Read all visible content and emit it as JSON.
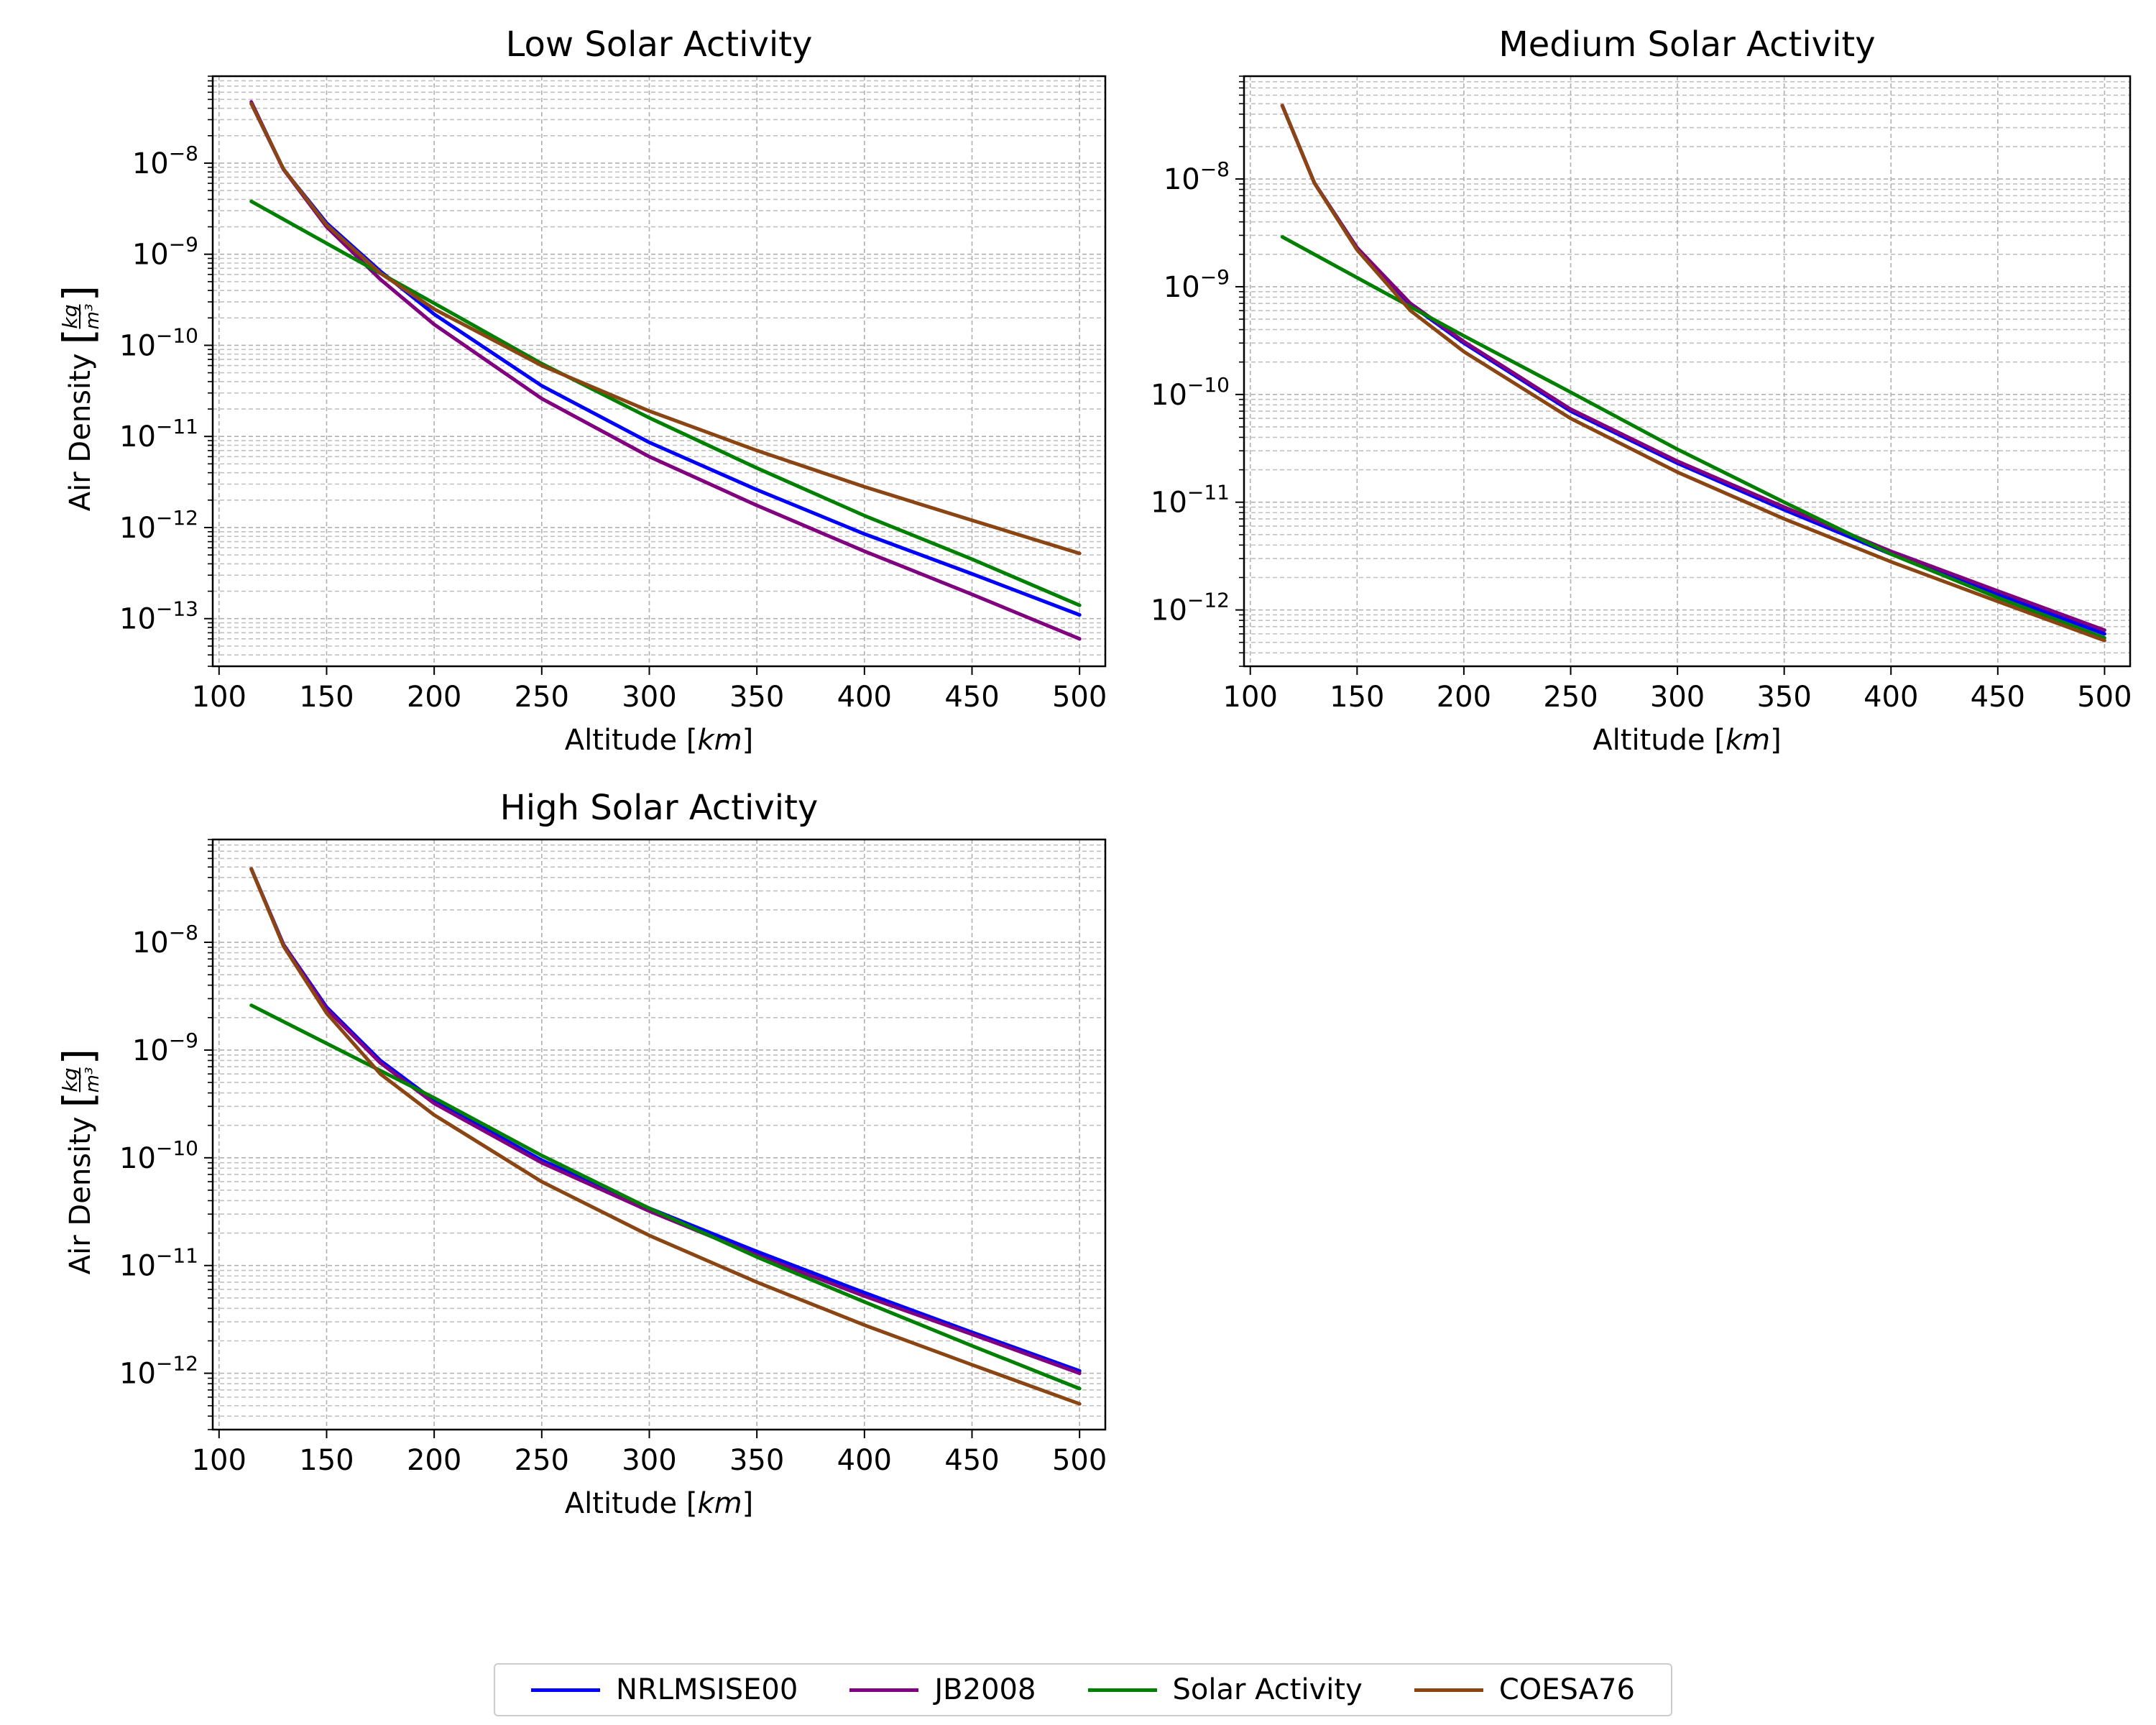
{
  "chart_data": [
    {
      "type": "line",
      "title": "Low Solar Activity",
      "xlabel": "Altitude [km]",
      "ylabel": "Air Density [kg/m³]",
      "x_range": [
        100,
        500
      ],
      "x_ticks": [
        100,
        150,
        200,
        250,
        300,
        350,
        400,
        450,
        500
      ],
      "y_scale": "log",
      "y_range": [
        3e-14,
        9e-08
      ],
      "y_ticks": [
        -13,
        -12,
        -11,
        -10,
        -9,
        -8
      ],
      "grid": "major and minor, dashed",
      "series": [
        {
          "name": "NRLMSISE00",
          "x": [
            115,
            130,
            150,
            175,
            200,
            250,
            300,
            350,
            400,
            450,
            500
          ],
          "y": [
            4.5e-08,
            8.5e-09,
            2.2e-09,
            6.5e-10,
            2.2e-10,
            3.6e-11,
            8.6e-12,
            2.6e-12,
            8.5e-13,
            3.1e-13,
            1.1e-13
          ]
        },
        {
          "name": "JB2008",
          "x": [
            115,
            130,
            150,
            175,
            200,
            250,
            300,
            350,
            400,
            450,
            500
          ],
          "y": [
            4.7e-08,
            8.5e-09,
            2e-09,
            5.3e-10,
            1.7e-10,
            2.6e-11,
            6e-12,
            1.75e-12,
            5.5e-13,
            1.85e-13,
            6e-14
          ]
        },
        {
          "name": "Solar Activity",
          "x": [
            115,
            200,
            250,
            300,
            350,
            400,
            450,
            500
          ],
          "y": [
            3.8e-09,
            2.9e-10,
            6.3e-11,
            1.6e-11,
            4.5e-12,
            1.35e-12,
            4.5e-13,
            1.4e-13
          ]
        },
        {
          "name": "COESA76",
          "x": [
            115,
            130,
            150,
            175,
            200,
            250,
            300,
            350,
            400,
            450,
            500
          ],
          "y": [
            4.5e-08,
            8.6e-09,
            2.1e-09,
            6.2e-10,
            2.5e-10,
            6e-11,
            1.9e-11,
            7e-12,
            2.8e-12,
            1.2e-12,
            5.2e-13
          ]
        }
      ]
    },
    {
      "type": "line",
      "title": "Medium Solar Activity",
      "xlabel": "Altitude [km]",
      "ylabel": "",
      "x_range": [
        100,
        500
      ],
      "x_ticks": [
        100,
        150,
        200,
        250,
        300,
        350,
        400,
        450,
        500
      ],
      "y_scale": "log",
      "y_range": [
        3e-13,
        9e-08
      ],
      "y_ticks": [
        -12,
        -11,
        -10,
        -9,
        -8
      ],
      "grid": "major and minor, dashed",
      "series": [
        {
          "name": "NRLMSISE00",
          "x": [
            115,
            130,
            150,
            175,
            200,
            250,
            300,
            350,
            400,
            450,
            500
          ],
          "y": [
            4.8e-08,
            9.2e-09,
            2.3e-09,
            6.8e-10,
            3e-10,
            7e-11,
            2.3e-11,
            8.5e-12,
            3.3e-12,
            1.4e-12,
            6e-13
          ]
        },
        {
          "name": "JB2008",
          "x": [
            115,
            130,
            150,
            175,
            200,
            250,
            300,
            350,
            400,
            450,
            500
          ],
          "y": [
            4.8e-08,
            9.2e-09,
            2.3e-09,
            7e-10,
            3.1e-10,
            7.3e-11,
            2.4e-11,
            9e-12,
            3.5e-12,
            1.5e-12,
            6.5e-13
          ]
        },
        {
          "name": "Solar Activity",
          "x": [
            115,
            200,
            250,
            300,
            350,
            400,
            450,
            500
          ],
          "y": [
            2.9e-09,
            3.5e-10,
            1.05e-10,
            3.1e-11,
            1e-11,
            3.3e-12,
            1.3e-12,
            5.5e-13
          ]
        },
        {
          "name": "COESA76",
          "x": [
            115,
            130,
            150,
            175,
            200,
            250,
            300,
            350,
            400,
            450,
            500
          ],
          "y": [
            4.8e-08,
            9.2e-09,
            2.2e-09,
            6e-10,
            2.5e-10,
            6e-11,
            1.9e-11,
            7e-12,
            2.8e-12,
            1.2e-12,
            5.2e-13
          ]
        }
      ]
    },
    {
      "type": "line",
      "title": "High Solar Activity",
      "xlabel": "Altitude [km]",
      "ylabel": "Air Density [kg/m³]",
      "x_range": [
        100,
        500
      ],
      "x_ticks": [
        100,
        150,
        200,
        250,
        300,
        350,
        400,
        450,
        500
      ],
      "y_scale": "log",
      "y_range": [
        3e-13,
        9e-08
      ],
      "y_ticks": [
        -12,
        -11,
        -10,
        -9,
        -8
      ],
      "grid": "major and minor, dashed",
      "series": [
        {
          "name": "NRLMSISE00",
          "x": [
            115,
            130,
            150,
            175,
            200,
            250,
            300,
            350,
            400,
            450,
            500
          ],
          "y": [
            4.8e-08,
            9.5e-09,
            2.5e-09,
            8e-10,
            3.4e-10,
            9.5e-11,
            3.4e-11,
            1.35e-11,
            5.6e-12,
            2.4e-12,
            1.05e-12
          ]
        },
        {
          "name": "JB2008",
          "x": [
            115,
            130,
            150,
            175,
            200,
            250,
            300,
            350,
            400,
            450,
            500
          ],
          "y": [
            4.8e-08,
            9.4e-09,
            2.4e-09,
            7.6e-10,
            3.2e-10,
            9e-11,
            3.2e-11,
            1.25e-11,
            5.2e-12,
            2.3e-12,
            1e-12
          ]
        },
        {
          "name": "Solar Activity",
          "x": [
            115,
            200,
            250,
            300,
            350,
            400,
            450,
            500
          ],
          "y": [
            2.6e-09,
            3.6e-10,
            1.05e-10,
            3.4e-11,
            1.2e-11,
            4.6e-12,
            1.8e-12,
            7.2e-13
          ]
        },
        {
          "name": "COESA76",
          "x": [
            115,
            130,
            150,
            175,
            200,
            250,
            300,
            350,
            400,
            450,
            500
          ],
          "y": [
            4.8e-08,
            9.2e-09,
            2.2e-09,
            6e-10,
            2.5e-10,
            6e-11,
            1.9e-11,
            7e-12,
            2.8e-12,
            1.2e-12,
            5.2e-13
          ]
        }
      ]
    }
  ],
  "legend": {
    "position": "bottom-center",
    "items": [
      {
        "label": "NRLMSISE00",
        "color": "#0000ff"
      },
      {
        "label": "JB2008",
        "color": "#800080"
      },
      {
        "label": "Solar Activity",
        "color": "#008000"
      },
      {
        "label": "COESA76",
        "color": "#8b4513"
      }
    ]
  }
}
